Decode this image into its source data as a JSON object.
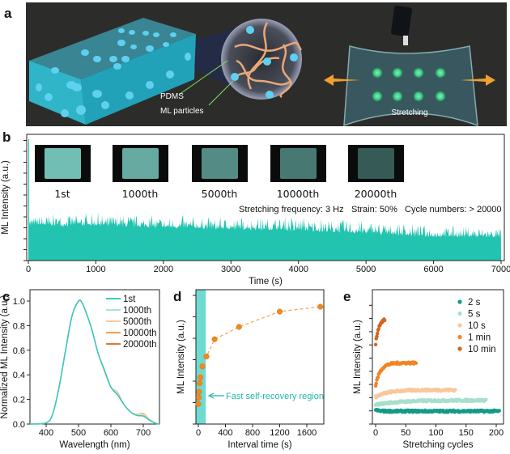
{
  "panel_labels": {
    "a": "a",
    "b": "b",
    "c": "c",
    "d": "d",
    "e": "e"
  },
  "panel_a": {
    "label_pdms": "PDMS",
    "label_ml_particles": "ML particles",
    "label_stretching": "Stretching",
    "colors": {
      "background": "#2c2d2b",
      "matrix": "#3ab6c8",
      "particle": "#5fd0f0",
      "polymer": "#f0b888",
      "glow": "#3fd07a",
      "arrow": "#f0a030"
    }
  },
  "chart_data": [
    {
      "id": "b",
      "type": "area",
      "xlabel": "Time (s)",
      "ylabel": "ML Intensity (a.u.)",
      "xlim": [
        0,
        7000
      ],
      "xticks": [
        0,
        1000,
        2000,
        3000,
        4000,
        5000,
        6000,
        7000
      ],
      "ylim": [
        0,
        1
      ],
      "y_tick_labels_shown": false,
      "color": "#22c4b0",
      "series": [
        {
          "x": [
            0,
            1000,
            2000,
            3000,
            4000,
            5000,
            6000,
            7000
          ],
          "mean": [
            0.29,
            0.29,
            0.27,
            0.26,
            0.25,
            0.23,
            0.2,
            0.2
          ],
          "peak": [
            0.34,
            0.35,
            0.33,
            0.32,
            0.32,
            0.29,
            0.26,
            0.25
          ]
        }
      ],
      "inset_images": [
        {
          "label": "1st",
          "brightness": 0.95
        },
        {
          "label": "1000th",
          "brightness": 0.85
        },
        {
          "label": "5000th",
          "brightness": 0.7
        },
        {
          "label": "10000th",
          "brightness": 0.6
        },
        {
          "label": "20000th",
          "brightness": 0.45
        }
      ],
      "annotations": {
        "frequency": "Stretching frequency: 3 Hz",
        "strain": "Strain: 50%",
        "cycles": "Cycle numbers: > 20000"
      }
    },
    {
      "id": "c",
      "type": "line",
      "xlabel": "Wavelength (nm)",
      "ylabel": "Normalized ML Intensity (a.u.)",
      "xlim": [
        350,
        750
      ],
      "ylim": [
        0,
        1.05
      ],
      "xticks": [
        400,
        500,
        600,
        700
      ],
      "yticks": [
        "0.0",
        "0.2",
        "0.4",
        "0.6",
        "0.8",
        "1.0"
      ],
      "legend": "top-right",
      "x": [
        350,
        400,
        420,
        440,
        460,
        480,
        500,
        510,
        520,
        540,
        560,
        580,
        600,
        620,
        640,
        660,
        680,
        700,
        720,
        740,
        750
      ],
      "series": [
        {
          "name": "1st",
          "color": "#3cc8bc",
          "values": [
            0,
            0.01,
            0.08,
            0.3,
            0.6,
            0.88,
            1.0,
            0.99,
            0.93,
            0.78,
            0.58,
            0.44,
            0.3,
            0.24,
            0.16,
            0.1,
            0.07,
            0.065,
            0.03,
            0.005,
            0
          ]
        },
        {
          "name": "1000th",
          "color": "#a8e4d8",
          "values": [
            0,
            0.01,
            0.08,
            0.3,
            0.6,
            0.88,
            1.0,
            0.99,
            0.93,
            0.78,
            0.58,
            0.44,
            0.3,
            0.24,
            0.16,
            0.1,
            0.07,
            0.07,
            0.03,
            0.005,
            0
          ]
        },
        {
          "name": "5000th",
          "color": "#f8c8a0",
          "values": [
            0,
            0.01,
            0.08,
            0.3,
            0.6,
            0.88,
            1.0,
            0.99,
            0.93,
            0.78,
            0.58,
            0.43,
            0.3,
            0.26,
            0.16,
            0.1,
            0.08,
            0.08,
            0.035,
            0.005,
            0
          ]
        },
        {
          "name": "10000th",
          "color": "#f8a050",
          "values": [
            0,
            0.01,
            0.08,
            0.3,
            0.6,
            0.88,
            1.0,
            0.99,
            0.93,
            0.78,
            0.58,
            0.43,
            0.3,
            0.26,
            0.16,
            0.1,
            0.08,
            0.085,
            0.035,
            0.005,
            0
          ]
        },
        {
          "name": "20000th",
          "color": "#e07830",
          "values": [
            0,
            0.01,
            0.08,
            0.3,
            0.6,
            0.88,
            1.0,
            0.99,
            0.93,
            0.78,
            0.58,
            0.43,
            0.3,
            0.26,
            0.16,
            0.1,
            0.08,
            0.085,
            0.035,
            0.005,
            0
          ]
        }
      ]
    },
    {
      "id": "d",
      "type": "scatter",
      "xlabel": "Interval time (s)",
      "ylabel": "ML Intensity (a.u.)",
      "xlim": [
        -50,
        1850
      ],
      "ylim": [
        0,
        1
      ],
      "xticks": [
        0,
        400,
        800,
        1200,
        1600
      ],
      "y_tick_labels_shown": false,
      "color": "#f08a1c",
      "line_style": "dashed",
      "x": [
        0,
        5,
        10,
        20,
        30,
        60,
        120,
        240,
        600,
        1200,
        1800
      ],
      "y": [
        0.157,
        0.207,
        0.251,
        0.318,
        0.362,
        0.448,
        0.525,
        0.659,
        0.755,
        0.874,
        0.912
      ],
      "shaded_region": {
        "x": [
          -30,
          110
        ],
        "color": "#3fcfc0",
        "label": "Fast self-recovery region"
      }
    },
    {
      "id": "e",
      "type": "scatter",
      "xlabel": "Stretching cycles",
      "ylabel": "ML Intensity (a.u.)",
      "xlim": [
        -5,
        210
      ],
      "ylim": [
        0,
        1
      ],
      "xticks": [
        0,
        50,
        100,
        150,
        200
      ],
      "y_tick_labels_shown": false,
      "legend": "top-right",
      "series": [
        {
          "name": "2 s",
          "color": "#139a88",
          "cycles": 205,
          "start": 0.11,
          "end": 0.1,
          "tau": 5
        },
        {
          "name": "5 s",
          "color": "#a6e0cc",
          "cycles": 183,
          "start": 0.15,
          "end": 0.185,
          "tau": 40
        },
        {
          "name": "10 s",
          "color": "#f8c89c",
          "cycles": 132,
          "start": 0.21,
          "end": 0.265,
          "tau": 20
        },
        {
          "name": "1 min",
          "color": "#f28424",
          "cycles": 67,
          "start": 0.3,
          "end": 0.475,
          "tau": 8
        },
        {
          "name": "10 min",
          "color": "#d2641a",
          "cycles": 15,
          "start": 0.62,
          "end": 0.82,
          "tau": 5
        }
      ]
    }
  ]
}
